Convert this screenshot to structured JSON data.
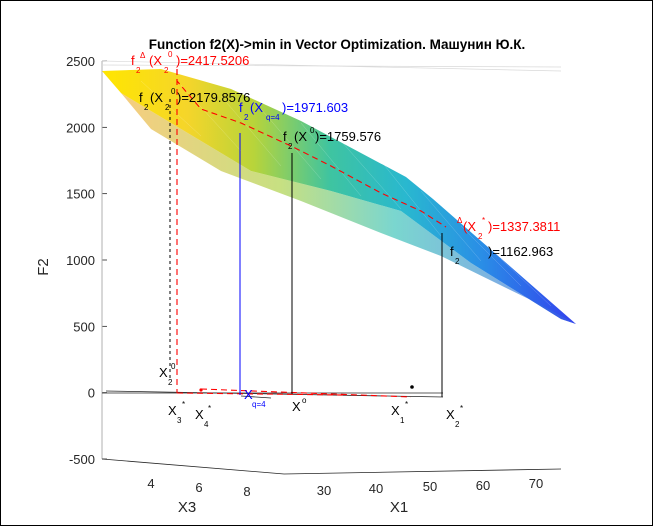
{
  "chart_data": {
    "type": "surface",
    "title": "Function f2(X)->min in Vector Optimization. Машунин Ю.К.",
    "xlabel": "X1",
    "x3label": "X3",
    "ylabel": "F2",
    "ylim": [
      -500,
      2500
    ],
    "yticks": [
      "-500",
      "0",
      "500",
      "1000",
      "1500",
      "2000",
      "2500"
    ],
    "x3ticks": [
      "4",
      "6",
      "8"
    ],
    "x1ticks": [
      "30",
      "40",
      "50",
      "60",
      "70"
    ],
    "annotations": [
      {
        "id": "fdelta-x0",
        "text": "f",
        "sub": "2",
        "sup": "Δ",
        "arg": "(X",
        "argsub": "2",
        "argsup": "0",
        "tail": ")=2417.5206",
        "color": "#ff0000"
      },
      {
        "id": "f-x20",
        "text": "f",
        "sub": "2",
        "arg": "(X",
        "argsub": "2",
        "argsup": "0",
        "tail": ")=2179.8576",
        "color": "#000000"
      },
      {
        "id": "f-xq",
        "text": "f",
        "sub": "2",
        "arg": "(X",
        "argsub": "q=4",
        "tail": ")=1971.603",
        "color": "#0000ff"
      },
      {
        "id": "f-x0",
        "text": "f",
        "sub": "2",
        "arg": "(X",
        "argsup": "0",
        "tail": ")=1759.576",
        "color": "#000000"
      },
      {
        "id": "fdelta-x2s",
        "sup": "Δ",
        "arg": "(X",
        "argsub": "2",
        "argsup": "*",
        "tail": ")=1337.3811",
        "color": "#ff0000"
      },
      {
        "id": "f-x2s",
        "text": "f",
        "sub": "2",
        "tail": ")=1162.963",
        "color": "#000000"
      }
    ],
    "points": [
      {
        "id": "pt-x20",
        "label": "X",
        "sub": "2",
        "sup": "0",
        "color": "#000000"
      },
      {
        "id": "pt-x3s",
        "label": "X",
        "sub": "3",
        "sup": "*",
        "color": "#000000"
      },
      {
        "id": "pt-x4s",
        "label": "X",
        "sub": "4",
        "sup": "*",
        "color": "#000000"
      },
      {
        "id": "pt-xq",
        "label": "X",
        "sub": "q=4",
        "color": "#0000ff"
      },
      {
        "id": "pt-x0",
        "label": "X",
        "sup": "o",
        "color": "#000000"
      },
      {
        "id": "pt-x1s",
        "label": "X",
        "sub": "1",
        "sup": "*",
        "color": "#000000"
      },
      {
        "id": "pt-x2s",
        "label": "X",
        "sub": "2",
        "sup": "*",
        "color": "#000000"
      }
    ],
    "surface_values": {
      "corner_top": 2400,
      "corner_right": 500
    }
  }
}
